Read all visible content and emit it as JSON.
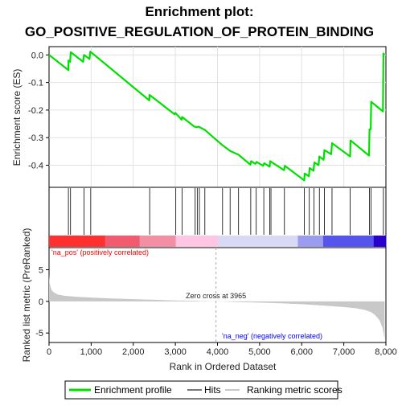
{
  "title_line1": "Enrichment plot:",
  "title_line2": "GO_POSITIVE_REGULATION_OF_PROTEIN_BINDING",
  "colors": {
    "enrichment_line": "#00e000",
    "hits": "#000000",
    "ranked_metric": "#c8c8c8",
    "pos_label": "#ff0000",
    "neg_label": "#0000ff",
    "zero_line": "#aaaaaa"
  },
  "chart_data": [
    {
      "type": "line",
      "panel": "enrichment-profile",
      "ylabel": "Enrichment score (ES)",
      "ylim": [
        -0.48,
        0.03
      ],
      "yticks": [
        0.0,
        -0.1,
        -0.2,
        -0.3,
        -0.4
      ],
      "ytick_labels": [
        "0.0",
        "-0.1",
        "-0.2",
        "-0.3",
        "-0.4"
      ],
      "grid": true,
      "series": [
        {
          "name": "Enrichment profile",
          "points": [
            [
              0,
              0.0
            ],
            [
              460,
              -0.055
            ],
            [
              462,
              -0.02
            ],
            [
              500,
              -0.025
            ],
            [
              515,
              0.01
            ],
            [
              810,
              -0.025
            ],
            [
              830,
              0.0
            ],
            [
              960,
              -0.015
            ],
            [
              980,
              0.012
            ],
            [
              2380,
              -0.165
            ],
            [
              2385,
              -0.145
            ],
            [
              2980,
              -0.215
            ],
            [
              3000,
              -0.21
            ],
            [
              3150,
              -0.235
            ],
            [
              3160,
              -0.225
            ],
            [
              3450,
              -0.26
            ],
            [
              3500,
              -0.262
            ],
            [
              3550,
              -0.26
            ],
            [
              3700,
              -0.272
            ],
            [
              4100,
              -0.325
            ],
            [
              4300,
              -0.348
            ],
            [
              4500,
              -0.362
            ],
            [
              4780,
              -0.398
            ],
            [
              4800,
              -0.385
            ],
            [
              4900,
              -0.395
            ],
            [
              4930,
              -0.388
            ],
            [
              5080,
              -0.402
            ],
            [
              5110,
              -0.393
            ],
            [
              5240,
              -0.405
            ],
            [
              5250,
              -0.385
            ],
            [
              5580,
              -0.418
            ],
            [
              5600,
              -0.402
            ],
            [
              6060,
              -0.455
            ],
            [
              6070,
              -0.43
            ],
            [
              6170,
              -0.44
            ],
            [
              6190,
              -0.41
            ],
            [
              6280,
              -0.42
            ],
            [
              6300,
              -0.39
            ],
            [
              6400,
              -0.4
            ],
            [
              6420,
              -0.368
            ],
            [
              6520,
              -0.38
            ],
            [
              6540,
              -0.345
            ],
            [
              6700,
              -0.36
            ],
            [
              6720,
              -0.32
            ],
            [
              7150,
              -0.368
            ],
            [
              7160,
              -0.31
            ],
            [
              7600,
              -0.365
            ],
            [
              7610,
              -0.27
            ],
            [
              7640,
              -0.27
            ],
            [
              7650,
              -0.17
            ],
            [
              7930,
              -0.205
            ],
            [
              7940,
              0.005
            ],
            [
              7970,
              0.0
            ]
          ]
        }
      ]
    },
    {
      "type": "scatter",
      "panel": "hits",
      "series": [
        {
          "name": "Hits",
          "x": [
            460,
            510,
            830,
            990,
            2390,
            3010,
            3160,
            3470,
            3520,
            3570,
            3700,
            4120,
            4300,
            4500,
            4790,
            4920,
            5100,
            5240,
            5270,
            5590,
            6060,
            6180,
            6290,
            6420,
            6540,
            6720,
            7150,
            7610,
            7645,
            7940
          ]
        }
      ]
    },
    {
      "type": "heatmap",
      "panel": "rank-colorbar",
      "x": [
        0,
        1300,
        1320,
        2100,
        2140,
        2900,
        3000,
        3900,
        4000,
        5800,
        5900,
        6400,
        6500,
        7600,
        7700,
        8000
      ],
      "colors": [
        "#ff3030",
        "#ff3030",
        "#f25a6f",
        "#f25a6f",
        "#f28fa5",
        "#f28fa5",
        "#ffc6e4",
        "#ffc6e4",
        "#d9d9f5",
        "#d9d9f5",
        "#9b9bf0",
        "#9b9bf0",
        "#5555ee",
        "#5555ee",
        "#2a00cc",
        "#2a00cc"
      ],
      "pos_label": "'na_pos' (positively correlated)",
      "neg_label": "'na_neg' (negatively correlated)"
    },
    {
      "type": "area",
      "panel": "ranked-list-metric",
      "xlabel": "Rank in Ordered Dataset",
      "ylabel": "Ranked list metric (PreRanked)",
      "ylim": [
        -6.5,
        8.5
      ],
      "yticks": [
        -5,
        0,
        5
      ],
      "ytick_labels": [
        "-5",
        "0",
        "5"
      ],
      "xlim": [
        0,
        8000
      ],
      "xticks": [
        0,
        1000,
        2000,
        3000,
        4000,
        5000,
        6000,
        7000,
        8000
      ],
      "xtick_labels": [
        "0",
        "1,000",
        "2,000",
        "3,000",
        "4,000",
        "5,000",
        "6,000",
        "7,000",
        "8,000"
      ],
      "zero_cross": 3965,
      "zero_cross_label": "Zero cross at 3965",
      "series": [
        {
          "name": "Ranking metric scores",
          "points": [
            [
              0,
              4.2
            ],
            [
              10,
              3.2
            ],
            [
              30,
              2.4
            ],
            [
              60,
              1.8
            ],
            [
              100,
              1.5
            ],
            [
              200,
              1.1
            ],
            [
              350,
              0.9
            ],
            [
              600,
              0.75
            ],
            [
              1000,
              0.6
            ],
            [
              1500,
              0.45
            ],
            [
              2000,
              0.35
            ],
            [
              2500,
              0.25
            ],
            [
              3000,
              0.15
            ],
            [
              3500,
              0.07
            ],
            [
              3965,
              0.0
            ],
            [
              4500,
              -0.1
            ],
            [
              5000,
              -0.2
            ],
            [
              5500,
              -0.3
            ],
            [
              6000,
              -0.45
            ],
            [
              6500,
              -0.65
            ],
            [
              7000,
              -0.9
            ],
            [
              7300,
              -1.1
            ],
            [
              7500,
              -1.35
            ],
            [
              7650,
              -1.7
            ],
            [
              7750,
              -2.2
            ],
            [
              7850,
              -3.0
            ],
            [
              7920,
              -4.2
            ],
            [
              7960,
              -5.6
            ],
            [
              7970,
              -6.0
            ]
          ]
        }
      ]
    }
  ],
  "legend": {
    "items": [
      {
        "label": "Enrichment profile",
        "color": "#00e000",
        "style": "line-thick"
      },
      {
        "label": "Hits",
        "color": "#777777",
        "style": "line-thin"
      },
      {
        "label": "Ranking metric scores",
        "color": "#c8c8c8",
        "style": "line-thin"
      }
    ]
  }
}
